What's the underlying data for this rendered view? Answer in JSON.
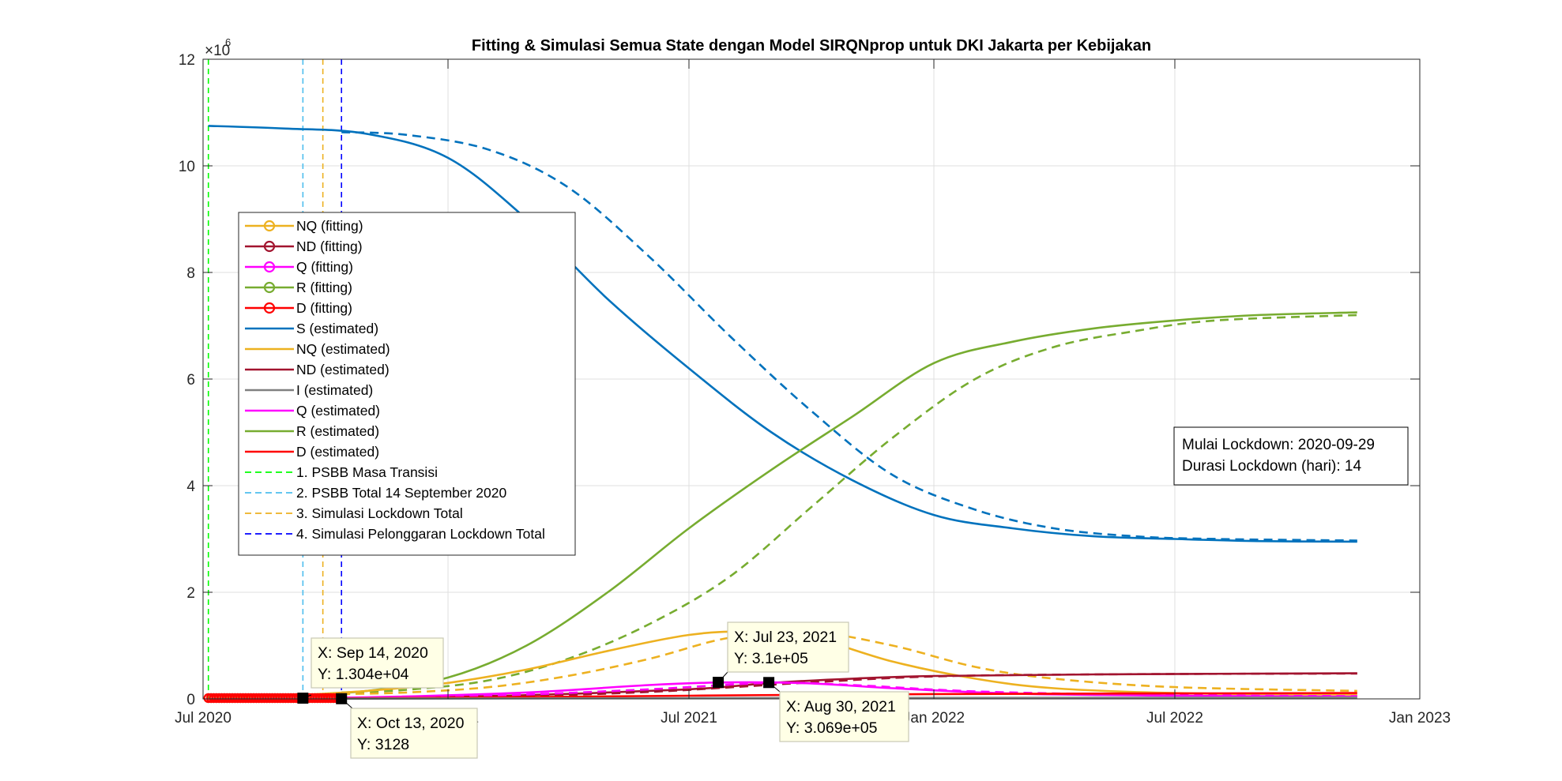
{
  "chart_data": {
    "type": "line",
    "title": "Fitting & Simulasi Semua State dengan Model SIRQNprop untuk DKI Jakarta per Kebijakan",
    "xlabel": "",
    "ylabel": "",
    "y_exponent_label": "×10",
    "y_exponent_power": "6",
    "xlim": [
      "2020-07-01",
      "2023-01-01"
    ],
    "ylim": [
      0,
      12000000
    ],
    "x_ticks": [
      {
        "date": "2020-07-01",
        "label": "Jul 2020"
      },
      {
        "date": "2021-01-01",
        "label": "Jan 2021"
      },
      {
        "date": "2021-07-01",
        "label": "Jul 2021"
      },
      {
        "date": "2022-01-01",
        "label": "Jan 2022"
      },
      {
        "date": "2022-07-01",
        "label": "Jul 2022"
      },
      {
        "date": "2023-01-01",
        "label": "Jan 2023"
      }
    ],
    "y_ticks": [
      {
        "value": 0,
        "label": "0"
      },
      {
        "value": 2000000,
        "label": "2"
      },
      {
        "value": 4000000,
        "label": "4"
      },
      {
        "value": 6000000,
        "label": "6"
      },
      {
        "value": 8000000,
        "label": "8"
      },
      {
        "value": 10000000,
        "label": "10"
      },
      {
        "value": 12000000,
        "label": "12"
      }
    ],
    "grid": true,
    "legend_position": "left",
    "legend": [
      {
        "label": "NQ (fitting)",
        "color": "#EDB120",
        "style": "marker"
      },
      {
        "label": "ND (fitting)",
        "color": "#A2142F",
        "style": "marker"
      },
      {
        "label": "Q (fitting)",
        "color": "#FF00FF",
        "style": "marker"
      },
      {
        "label": "R (fitting)",
        "color": "#77AC30",
        "style": "marker"
      },
      {
        "label": "D (fitting)",
        "color": "#FF0000",
        "style": "marker"
      },
      {
        "label": "S (estimated)",
        "color": "#0072BD",
        "style": "solid"
      },
      {
        "label": "NQ (estimated)",
        "color": "#EDB120",
        "style": "solid"
      },
      {
        "label": "ND (estimated)",
        "color": "#A2142F",
        "style": "solid"
      },
      {
        "label": "I (estimated)",
        "color": "#808080",
        "style": "solid"
      },
      {
        "label": "Q (estimated)",
        "color": "#FF00FF",
        "style": "solid"
      },
      {
        "label": "R (estimated)",
        "color": "#77AC30",
        "style": "solid"
      },
      {
        "label": "D (estimated)",
        "color": "#FF0000",
        "style": "solid"
      },
      {
        "label": "1. PSBB Masa Transisi",
        "color": "#00FF00",
        "style": "dashed"
      },
      {
        "label": "2. PSBB Total 14 September 2020",
        "color": "#4DBEEE",
        "style": "dashed"
      },
      {
        "label": "3. Simulasi Lockdown Total",
        "color": "#EDB120",
        "style": "dashed"
      },
      {
        "label": "4. Simulasi Pelonggaran Lockdown Total",
        "color": "#0000FF",
        "style": "dashed"
      }
    ],
    "policy_lines": [
      {
        "date": "2020-07-05",
        "color": "#00FF00"
      },
      {
        "date": "2020-09-14",
        "color": "#4DBEEE"
      },
      {
        "date": "2020-09-29",
        "color": "#EDB120"
      },
      {
        "date": "2020-10-13",
        "color": "#0000FF"
      }
    ],
    "series": [
      {
        "name": "S (estimated)",
        "color": "#0072BD",
        "dash": false,
        "x": [
          "2020-07-05",
          "2020-09-01",
          "2020-11-01",
          "2021-01-01",
          "2021-03-01",
          "2021-05-01",
          "2021-07-01",
          "2021-09-01",
          "2021-11-01",
          "2022-01-01",
          "2022-03-01",
          "2022-05-01",
          "2022-07-01",
          "2022-09-01",
          "2022-11-15"
        ],
        "y": [
          10750000,
          10700000,
          10600000,
          10150000,
          9000000,
          7500000,
          6200000,
          5000000,
          4100000,
          3450000,
          3200000,
          3050000,
          3000000,
          2960000,
          2950000
        ]
      },
      {
        "name": "S (simulasi)",
        "color": "#0072BD",
        "dash": true,
        "x": [
          "2020-10-13",
          "2020-12-01",
          "2021-02-01",
          "2021-04-01",
          "2021-06-01",
          "2021-08-01",
          "2021-10-01",
          "2021-12-01",
          "2022-02-01",
          "2022-04-01",
          "2022-06-01",
          "2022-08-01",
          "2022-11-15"
        ],
        "y": [
          10630000,
          10580000,
          10300000,
          9600000,
          8300000,
          6800000,
          5400000,
          4200000,
          3550000,
          3200000,
          3050000,
          3000000,
          2970000
        ]
      },
      {
        "name": "R (estimated)",
        "color": "#77AC30",
        "dash": false,
        "x": [
          "2020-07-05",
          "2020-09-01",
          "2020-11-01",
          "2021-01-01",
          "2021-03-01",
          "2021-05-01",
          "2021-07-01",
          "2021-09-01",
          "2021-11-01",
          "2022-01-01",
          "2022-03-01",
          "2022-05-01",
          "2022-07-01",
          "2022-09-01",
          "2022-11-15"
        ],
        "y": [
          0,
          50000,
          150000,
          400000,
          1000000,
          2000000,
          3200000,
          4300000,
          5300000,
          6300000,
          6700000,
          6950000,
          7100000,
          7200000,
          7250000
        ]
      },
      {
        "name": "R (simulasi)",
        "color": "#77AC30",
        "dash": true,
        "x": [
          "2020-10-13",
          "2020-12-01",
          "2021-02-01",
          "2021-04-01",
          "2021-06-01",
          "2021-08-01",
          "2021-10-01",
          "2021-12-01",
          "2022-02-01",
          "2022-04-01",
          "2022-06-01",
          "2022-08-01",
          "2022-11-15"
        ],
        "y": [
          120000,
          170000,
          350000,
          750000,
          1400000,
          2300000,
          3600000,
          4900000,
          6000000,
          6600000,
          6900000,
          7100000,
          7200000
        ]
      },
      {
        "name": "NQ (estimated)",
        "color": "#EDB120",
        "dash": false,
        "x": [
          "2020-07-05",
          "2020-09-01",
          "2020-11-01",
          "2021-01-01",
          "2021-03-01",
          "2021-05-01",
          "2021-07-01",
          "2021-08-15",
          "2021-10-01",
          "2021-12-01",
          "2022-02-01",
          "2022-04-01",
          "2022-07-01",
          "2022-11-15"
        ],
        "y": [
          0,
          60000,
          150000,
          300000,
          550000,
          900000,
          1200000,
          1260000,
          1150000,
          700000,
          380000,
          200000,
          110000,
          80000
        ]
      },
      {
        "name": "NQ (simulasi)",
        "color": "#EDB120",
        "dash": true,
        "x": [
          "2020-10-13",
          "2020-12-01",
          "2021-02-01",
          "2021-04-01",
          "2021-06-01",
          "2021-08-01",
          "2021-10-01",
          "2021-12-01",
          "2022-02-01",
          "2022-04-01",
          "2022-07-01",
          "2022-11-15"
        ],
        "y": [
          90000,
          120000,
          220000,
          430000,
          750000,
          1150000,
          1250000,
          1000000,
          600000,
          380000,
          220000,
          150000
        ]
      },
      {
        "name": "ND (estimated)",
        "color": "#A2142F",
        "dash": false,
        "x": [
          "2020-07-05",
          "2020-11-01",
          "2021-03-01",
          "2021-07-01",
          "2021-09-01",
          "2021-11-01",
          "2022-01-01",
          "2022-05-01",
          "2022-11-15"
        ],
        "y": [
          0,
          20000,
          70000,
          180000,
          300000,
          380000,
          430000,
          460000,
          480000
        ]
      },
      {
        "name": "ND (simulasi)",
        "color": "#A2142F",
        "dash": true,
        "x": [
          "2020-10-13",
          "2021-02-01",
          "2021-06-01",
          "2021-10-01",
          "2022-01-01",
          "2022-05-01",
          "2022-11-15"
        ],
        "y": [
          15000,
          40000,
          130000,
          310000,
          420000,
          460000,
          475000
        ]
      },
      {
        "name": "Q (estimated)",
        "color": "#FF00FF",
        "dash": false,
        "x": [
          "2020-07-05",
          "2020-11-01",
          "2021-03-01",
          "2021-06-01",
          "2021-08-01",
          "2021-10-01",
          "2021-12-01",
          "2022-03-01",
          "2022-07-01",
          "2022-11-15"
        ],
        "y": [
          0,
          30000,
          120000,
          260000,
          310000,
          290000,
          200000,
          100000,
          60000,
          40000
        ]
      },
      {
        "name": "Q (simulasi)",
        "color": "#FF00FF",
        "dash": true,
        "x": [
          "2020-10-13",
          "2021-02-01",
          "2021-06-01",
          "2021-08-30",
          "2021-11-01",
          "2022-02-01",
          "2022-06-01",
          "2022-11-15"
        ],
        "y": [
          20000,
          60000,
          180000,
          300000,
          260000,
          140000,
          80000,
          50000
        ]
      },
      {
        "name": "D (estimated)",
        "color": "#FF0000",
        "dash": false,
        "x": [
          "2020-07-05",
          "2021-01-01",
          "2021-07-01",
          "2022-01-01",
          "2022-11-15"
        ],
        "y": [
          0,
          20000,
          60000,
          90000,
          110000
        ]
      },
      {
        "name": "I (estimated)",
        "color": "#808080",
        "dash": false,
        "x": [
          "2020-07-05",
          "2021-07-01",
          "2022-11-15"
        ],
        "y": [
          0,
          15000,
          25000
        ]
      }
    ],
    "fitting_range": [
      "2020-07-05",
      "2020-10-13"
    ],
    "annotation": {
      "line1": "Mulai Lockdown: 2020-09-29",
      "line2": "Durasi Lockdown (hari): 14"
    },
    "datatips": [
      {
        "x": "2020-09-14",
        "y": 13040,
        "label_x": "X: Sep 14, 2020",
        "label_y": "Y: 1.304e+04"
      },
      {
        "x": "2020-10-13",
        "y": 3128,
        "label_x": "X: Oct 13, 2020",
        "label_y": "Y: 3128"
      },
      {
        "x": "2021-07-23",
        "y": 310000,
        "label_x": "X: Jul 23, 2021",
        "label_y": "Y: 3.1e+05"
      },
      {
        "x": "2021-08-30",
        "y": 306900,
        "label_x": "X: Aug 30, 2021",
        "label_y": "Y: 3.069e+05"
      }
    ]
  }
}
